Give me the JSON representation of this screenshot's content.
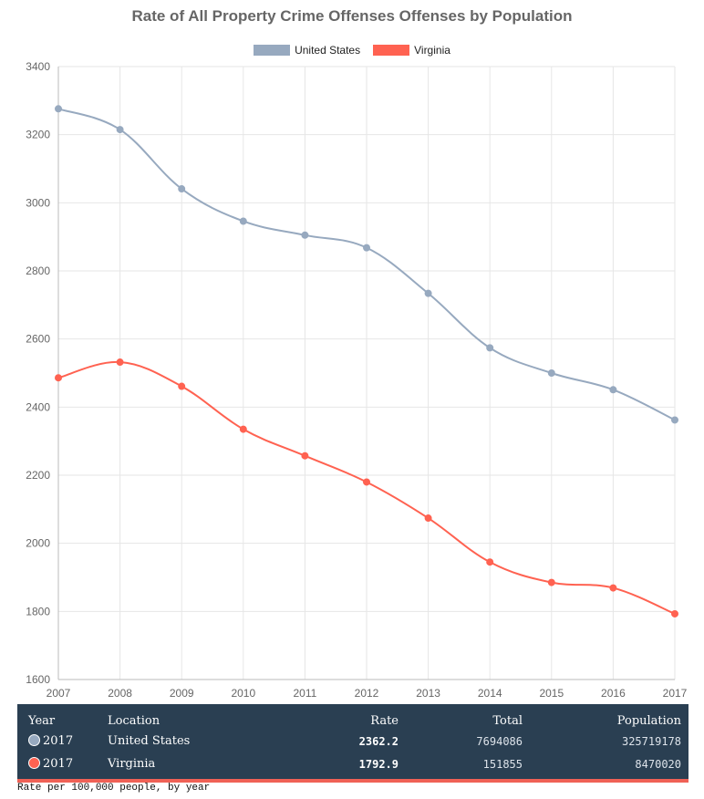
{
  "chart_data": {
    "type": "line",
    "title": "Rate of All Property Crime Offenses Offenses by Population",
    "xlabel": "",
    "ylabel": "",
    "x": [
      "2007",
      "2008",
      "2009",
      "2010",
      "2011",
      "2012",
      "2013",
      "2014",
      "2015",
      "2016",
      "2017"
    ],
    "ylim": [
      1600,
      3400
    ],
    "yticks": [
      1600,
      1800,
      2000,
      2200,
      2400,
      2600,
      2800,
      3000,
      3200,
      3400
    ],
    "grid": true,
    "legend": "top-center",
    "series": [
      {
        "name": "United States",
        "color": "#97a9bf",
        "values": [
          3276,
          3215,
          3041,
          2946,
          2905,
          2868,
          2734,
          2574,
          2500,
          2451,
          2362.2
        ]
      },
      {
        "name": "Virginia",
        "color": "#ff6251",
        "values": [
          2486,
          2532,
          2461,
          2335,
          2257,
          2180,
          2074,
          1945,
          1885,
          1869,
          1792.9
        ]
      }
    ]
  },
  "table": {
    "headers": {
      "year": "Year",
      "location": "Location",
      "rate": "Rate",
      "total": "Total",
      "population": "Population"
    },
    "rows": [
      {
        "year": "2017",
        "location": "United States",
        "rate": "2362.2",
        "total": "7694086",
        "population": "325719178",
        "color": "#97a9bf"
      },
      {
        "year": "2017",
        "location": "Virginia",
        "rate": "1792.9",
        "total": "151855",
        "population": "8470020",
        "color": "#ff6251"
      }
    ]
  },
  "footnote": "Rate per 100,000 people, by year"
}
